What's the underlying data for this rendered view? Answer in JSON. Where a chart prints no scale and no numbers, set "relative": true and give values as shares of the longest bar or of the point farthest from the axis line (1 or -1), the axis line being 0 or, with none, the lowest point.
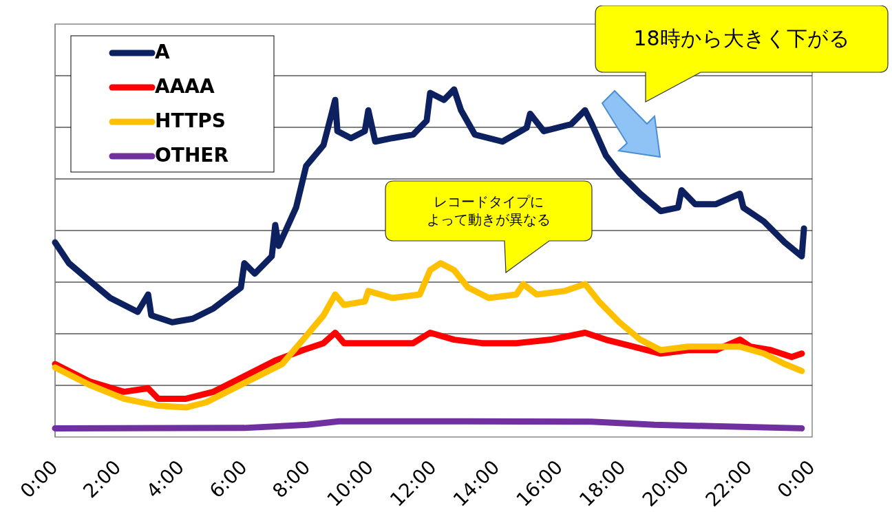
{
  "chart_data": {
    "type": "line",
    "relative": true,
    "grid": true,
    "legend": "top left",
    "marker": "none",
    "line_style": "solid",
    "xlim": [
      0,
      24
    ],
    "xticks": [
      {
        "value": 0,
        "label": "0:00"
      },
      {
        "value": 2,
        "label": "2:00"
      },
      {
        "value": 4,
        "label": "4:00"
      },
      {
        "value": 6,
        "label": "6:00"
      },
      {
        "value": 8,
        "label": "8:00"
      },
      {
        "value": 10,
        "label": "10:00"
      },
      {
        "value": 12,
        "label": "12:00"
      },
      {
        "value": 14,
        "label": "14:00"
      },
      {
        "value": 16,
        "label": "16:00"
      },
      {
        "value": 18,
        "label": "18:00"
      },
      {
        "value": 20,
        "label": "20:00"
      },
      {
        "value": 22,
        "label": "22:00"
      },
      {
        "value": 24,
        "label": "0:00"
      }
    ],
    "annotations": [
      "18時から大きく下がる",
      "レコードタイプによって動きが異なる"
    ],
    "series": [
      {
        "name": "A",
        "color": "#0d2160",
        "x": [
          0,
          0.44,
          1.09,
          1.75,
          2.62,
          2.95,
          3.05,
          3.71,
          4.36,
          5.02,
          5.89,
          6.0,
          6.33,
          6.87,
          6.98,
          7.09,
          7.64,
          7.96,
          8.51,
          8.88,
          8.95,
          9.38,
          9.82,
          9.93,
          10.15,
          10.69,
          11.35,
          11.78,
          11.89,
          12.33,
          12.65,
          12.87,
          13.31,
          14.18,
          14.95,
          15.06,
          15.49,
          16.36,
          16.8,
          17.02,
          17.46,
          17.89,
          18.55,
          19.2,
          19.75,
          19.86,
          20.29,
          20.95,
          21.71,
          21.82,
          22.47,
          23.13,
          23.67,
          23.74
        ],
        "values": [
          0.56,
          0.5,
          0.45,
          0.4,
          0.36,
          0.41,
          0.35,
          0.33,
          0.34,
          0.37,
          0.43,
          0.5,
          0.47,
          0.52,
          0.61,
          0.55,
          0.66,
          0.78,
          0.84,
          0.97,
          0.88,
          0.86,
          0.88,
          0.94,
          0.85,
          0.86,
          0.87,
          0.91,
          0.99,
          0.97,
          1.0,
          0.94,
          0.87,
          0.85,
          0.89,
          0.93,
          0.88,
          0.9,
          0.94,
          0.9,
          0.81,
          0.76,
          0.7,
          0.65,
          0.66,
          0.71,
          0.67,
          0.67,
          0.7,
          0.66,
          0.62,
          0.56,
          0.52,
          0.6
        ]
      },
      {
        "name": "AAAA",
        "color": "#ff0000",
        "x": [
          0,
          1.09,
          2.18,
          2.95,
          3.27,
          4.15,
          5.02,
          5.89,
          6.98,
          7.86,
          8.51,
          8.88,
          9.16,
          10.47,
          11.35,
          11.89,
          12.65,
          13.53,
          14.62,
          15.71,
          16.8,
          17.46,
          18.33,
          19.2,
          20.07,
          20.95,
          21.71,
          22.04,
          22.69,
          23.35,
          23.67
        ],
        "values": [
          0.21,
          0.16,
          0.13,
          0.14,
          0.11,
          0.11,
          0.13,
          0.17,
          0.22,
          0.25,
          0.27,
          0.3,
          0.27,
          0.27,
          0.27,
          0.3,
          0.28,
          0.27,
          0.27,
          0.28,
          0.3,
          0.28,
          0.26,
          0.24,
          0.25,
          0.25,
          0.28,
          0.26,
          0.25,
          0.23,
          0.24
        ]
      },
      {
        "name": "HTTPS",
        "color": "#ffc000",
        "x": [
          0,
          1.09,
          2.18,
          3.27,
          4.15,
          4.8,
          5.67,
          6.55,
          7.2,
          7.86,
          8.51,
          8.88,
          9.16,
          9.82,
          9.93,
          10.69,
          11.56,
          11.89,
          12.22,
          12.65,
          13.09,
          13.75,
          14.62,
          14.84,
          15.27,
          16.15,
          16.8,
          17.24,
          17.89,
          18.55,
          19.2,
          20.07,
          20.95,
          21.71,
          22.47,
          23.13,
          23.67
        ],
        "values": [
          0.2,
          0.15,
          0.11,
          0.09,
          0.085,
          0.1,
          0.14,
          0.18,
          0.21,
          0.28,
          0.35,
          0.41,
          0.38,
          0.39,
          0.42,
          0.4,
          0.41,
          0.48,
          0.5,
          0.48,
          0.43,
          0.4,
          0.41,
          0.44,
          0.41,
          0.42,
          0.44,
          0.39,
          0.33,
          0.28,
          0.25,
          0.26,
          0.26,
          0.26,
          0.24,
          0.21,
          0.19
        ]
      },
      {
        "name": "OTHER",
        "color": "#7030a0",
        "x": [
          0,
          6,
          8,
          9,
          13,
          17,
          19,
          23.67
        ],
        "values": [
          0.025,
          0.026,
          0.035,
          0.045,
          0.045,
          0.044,
          0.035,
          0.025
        ]
      }
    ]
  }
}
